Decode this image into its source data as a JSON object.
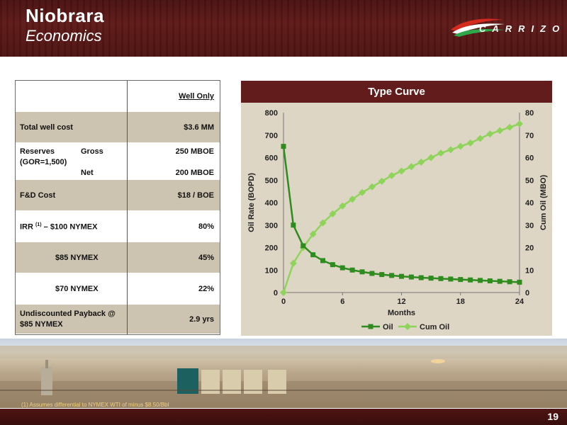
{
  "header": {
    "title": "Niobrara",
    "subtitle": "Economics",
    "logo_text": "CARRIZO"
  },
  "table": {
    "column_header": "Well Only",
    "rows": [
      {
        "label": "Total well cost",
        "value": "$3.6 MM"
      },
      {
        "label": "Reserves",
        "sub_gross": "Gross",
        "value_gross": "250 MBOE",
        "label2": "(GOR=1,500)",
        "sub_net": "Net",
        "value_net": "200 MBOE"
      },
      {
        "label": "F&D Cost",
        "value": "$18 / BOE"
      },
      {
        "label_a": "IRR",
        "label_sup": "(1)",
        "label_b": "–  $100 NYMEX",
        "value": "80%"
      },
      {
        "label": "$85 NYMEX",
        "value": "45%"
      },
      {
        "label": "$70 NYMEX",
        "value": "22%"
      },
      {
        "label": "Undiscounted Payback @",
        "label2": "$85 NYMEX",
        "value": "2.9 yrs"
      }
    ]
  },
  "chart_data": {
    "type": "line",
    "title": "Type Curve",
    "xlabel": "Months",
    "ylabel": "Oil Rate (BOPD)",
    "y2label": "Cum Oil (MBO)",
    "xlim": [
      0,
      24
    ],
    "ylim": [
      0,
      800
    ],
    "y2lim": [
      0,
      80
    ],
    "x_ticks": [
      "0",
      "6",
      "12",
      "18",
      "24"
    ],
    "y_ticks": [
      "0",
      "100",
      "200",
      "300",
      "400",
      "500",
      "600",
      "700",
      "800"
    ],
    "y2_ticks": [
      "0",
      "10",
      "20",
      "30",
      "40",
      "50",
      "60",
      "70",
      "80"
    ],
    "legend_position": "bottom",
    "x": [
      0,
      1,
      2,
      3,
      4,
      5,
      6,
      7,
      8,
      9,
      10,
      11,
      12,
      13,
      14,
      15,
      16,
      17,
      18,
      19,
      20,
      21,
      22,
      23,
      24
    ],
    "series": [
      {
        "name": "Oil",
        "axis": "left",
        "color": "#2e8b1e",
        "values": [
          650,
          300,
          208,
          168,
          142,
          124,
          110,
          100,
          92,
          85,
          80,
          76,
          72,
          69,
          66,
          64,
          62,
          60,
          58,
          56,
          54,
          52,
          50,
          48,
          46
        ]
      },
      {
        "name": "Cum Oil",
        "axis": "right",
        "color": "#8ed45a",
        "values": [
          0,
          13,
          20,
          26,
          31,
          35,
          38.5,
          41.5,
          44.5,
          47,
          49.5,
          52,
          54,
          56,
          58,
          60,
          62,
          63.5,
          65,
          66.5,
          68.5,
          70.5,
          72,
          73.5,
          75
        ]
      }
    ]
  },
  "footnote": "(1)    Assumes differential to NYMEX WTI of  minus $8.50/Bbl",
  "page_number": "19"
}
